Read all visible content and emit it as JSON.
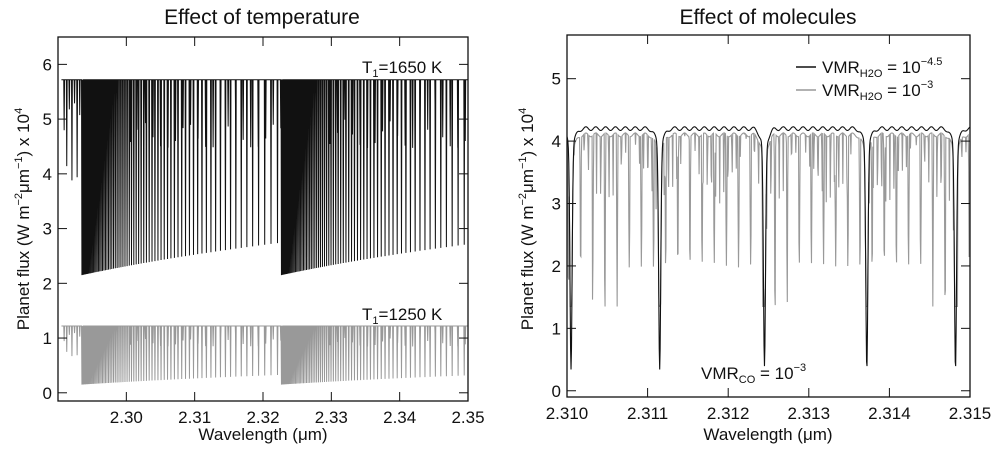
{
  "chart_data": [
    {
      "type": "line",
      "title": "Effect of temperature",
      "xlabel": "Wavelength (μm)",
      "ylabel": {
        "main": "Planet flux (W m",
        "exp1": "−2",
        "mid": "μm",
        "exp2": "−1",
        "end": ") x 10",
        "exp3": "4"
      },
      "xlim": [
        2.29,
        2.35
      ],
      "ylim": [
        -0.15,
        6.5
      ],
      "xticks": [
        "2.30",
        "2.31",
        "2.32",
        "2.33",
        "2.34",
        "2.35"
      ],
      "xtick_values": [
        2.3,
        2.31,
        2.32,
        2.33,
        2.34,
        2.35
      ],
      "yticks": [
        "0",
        "1",
        "2",
        "3",
        "4",
        "5",
        "6"
      ],
      "ytick_values": [
        0,
        1,
        2,
        3,
        4,
        5,
        6
      ],
      "annotations": [
        {
          "main": "T",
          "sub": "1",
          "rest": "=1650 K"
        },
        {
          "main": "T",
          "sub": "1",
          "rest": "=1250 K"
        }
      ],
      "series": [
        {
          "continuum": 5.72,
          "color": "#111111",
          "band_heads_um": [
            2.2935,
            2.3227
          ],
          "deepest_line_flux": 2.15,
          "x_start": 2.2905,
          "x_end": 2.35
        },
        {
          "continuum": 1.22,
          "color": "#999999",
          "band_heads_um": [
            2.2935,
            2.3227
          ],
          "deepest_line_flux": 0.15,
          "x_start": 2.2905,
          "x_end": 2.35
        }
      ]
    },
    {
      "type": "line",
      "title": "Effect of molecules",
      "xlabel": "Wavelength (μm)",
      "ylabel": {
        "main": "Planet flux (W m",
        "exp1": "−2",
        "mid": "μm",
        "exp2": "−1",
        "end": ") x 10",
        "exp3": "4"
      },
      "xlim": [
        2.31,
        2.315
      ],
      "ylim": [
        -0.1,
        5.7
      ],
      "xticks": [
        "2.310",
        "2.311",
        "2.312",
        "2.313",
        "2.314",
        "2.315"
      ],
      "xtick_values": [
        2.31,
        2.311,
        2.312,
        2.313,
        2.314,
        2.315
      ],
      "yticks": [
        "0",
        "1",
        "2",
        "3",
        "4",
        "5"
      ],
      "ytick_values": [
        0,
        1,
        2,
        3,
        4,
        5
      ],
      "annotation": {
        "main": "VMR",
        "sub": "CO",
        "rest": " = 10",
        "sup": "−3"
      },
      "series": [
        {
          "legend": {
            "main": "VMR",
            "sub": "H2O",
            "rest": " = 10",
            "sup": "−4.5"
          },
          "color": "#111111",
          "continuum": 4.2,
          "co_lines_um": [
            2.31005,
            2.31115,
            2.31245,
            2.31372,
            2.31482
          ],
          "co_line_depth": 0.62
        },
        {
          "legend": {
            "main": "VMR",
            "sub": "H2O",
            "rest": " = 10",
            "sup": "−3"
          },
          "color": "#999999",
          "continuum": 4.1,
          "co_lines_um": [
            2.31005,
            2.31115,
            2.31245,
            2.31372,
            2.31482
          ],
          "h2o_line_min": 1.35
        }
      ]
    }
  ]
}
